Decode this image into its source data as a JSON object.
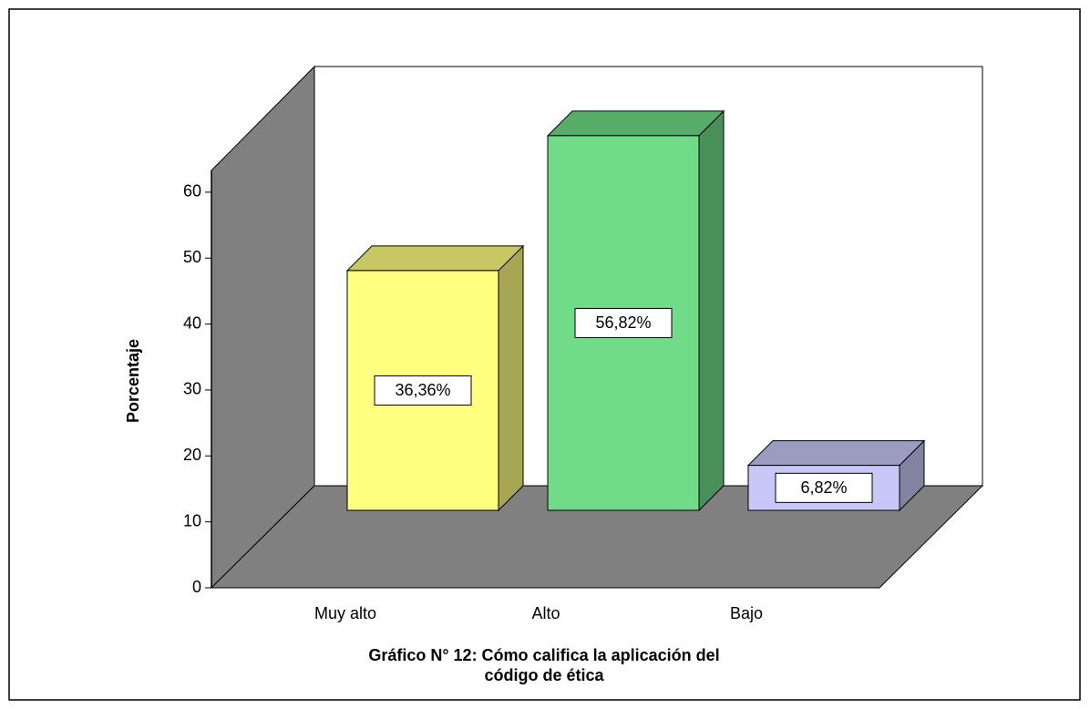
{
  "chart_data": {
    "type": "bar3d",
    "title": [
      "Gráfico N° 12: Cómo califica la aplicación del",
      "código de ética"
    ],
    "y_label": "Porcentaje",
    "categories": [
      "Muy alto",
      "Alto",
      "Bajo"
    ],
    "values": [
      36.36,
      56.82,
      6.82
    ],
    "value_labels": [
      "36,36%",
      "56,82%",
      "6,82%"
    ],
    "colors": [
      "#ffff80",
      "#70dc88",
      "#c8c8f8"
    ],
    "ylim": [
      0,
      63.3
    ],
    "yticks": [
      0,
      10,
      20,
      30,
      40,
      50,
      60
    ]
  }
}
